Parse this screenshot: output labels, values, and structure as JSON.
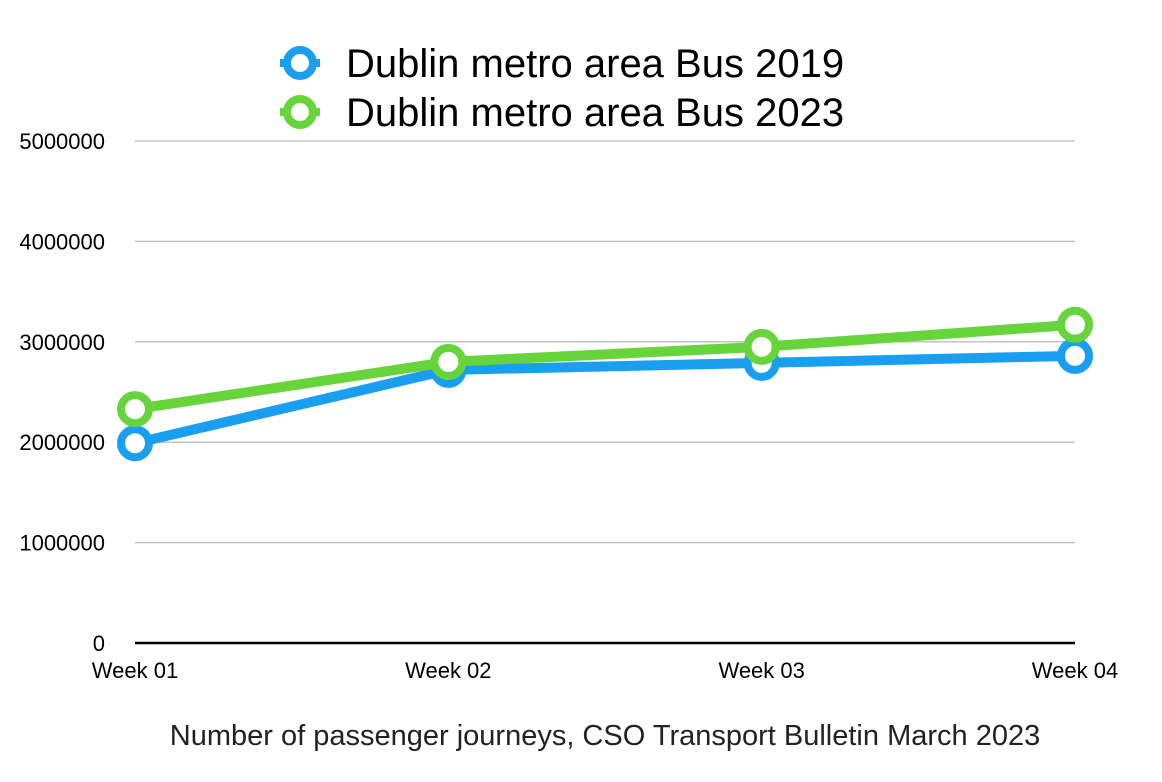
{
  "chart_data": {
    "type": "line",
    "title": "",
    "caption": "Number of passenger journeys, CSO Transport Bulletin March 2023",
    "xlabel": "",
    "ylabel": "",
    "categories": [
      "Week 01",
      "Week 02",
      "Week 03",
      "Week 04"
    ],
    "ylim": [
      0,
      5000000
    ],
    "yticks": [
      0,
      1000000,
      2000000,
      3000000,
      4000000,
      5000000
    ],
    "ytick_labels": [
      "0",
      "1000000",
      "2000000",
      "3000000",
      "4000000",
      "5000000"
    ],
    "grid": true,
    "legend_position": "top-center",
    "series": [
      {
        "name": "Dublin metro area Bus 2019",
        "color": "#1a9ff0",
        "values": [
          1990000,
          2720000,
          2790000,
          2860000
        ]
      },
      {
        "name": "Dublin metro area Bus 2023",
        "color": "#66d43a",
        "values": [
          2330000,
          2800000,
          2950000,
          3170000
        ]
      }
    ]
  }
}
